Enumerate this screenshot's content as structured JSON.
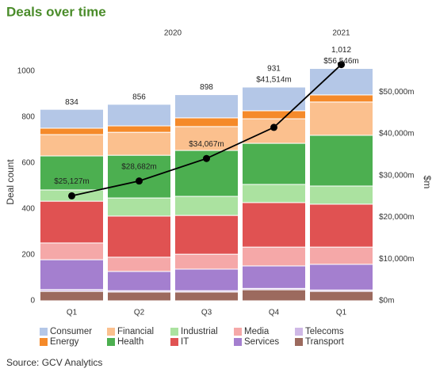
{
  "chart_data": {
    "type": "bar",
    "stacked": true,
    "title": "Deals over time",
    "source": "Source: GCV Analytics",
    "y_label": "Deal count",
    "y2_label": "$m",
    "categories": [
      "Q1",
      "Q2",
      "Q3",
      "Q4",
      "Q1"
    ],
    "category_groups": [
      {
        "label": "2020",
        "count": 4
      },
      {
        "label": "2021",
        "count": 1
      }
    ],
    "ylim": [
      0,
      1050
    ],
    "yticks": [
      0,
      200,
      400,
      600,
      800,
      1000
    ],
    "y2lim": [
      0,
      57700
    ],
    "y2ticks": [
      {
        "value": 0,
        "label": "$0m"
      },
      {
        "value": 10000,
        "label": "$10,000m"
      },
      {
        "value": 20000,
        "label": "$20,000m"
      },
      {
        "value": 30000,
        "label": "$30,000m"
      },
      {
        "value": 40000,
        "label": "$40,000m"
      },
      {
        "value": 50000,
        "label": "$50,000m"
      }
    ],
    "series": [
      {
        "name": "Consumer",
        "color": "#b4c7e7",
        "values": [
          82,
          94,
          101,
          103,
          115
        ]
      },
      {
        "name": "Energy",
        "color": "#f58a2a",
        "values": [
          28,
          28,
          38,
          35,
          31
        ]
      },
      {
        "name": "Financial",
        "color": "#fbc08e",
        "values": [
          93,
          100,
          104,
          107,
          145
        ]
      },
      {
        "name": "Health",
        "color": "#4caf50",
        "values": [
          148,
          186,
          200,
          179,
          221
        ]
      },
      {
        "name": "Industrial",
        "color": "#abe2a0",
        "values": [
          49,
          79,
          83,
          79,
          79
        ]
      },
      {
        "name": "IT",
        "color": "#e05252",
        "values": [
          182,
          179,
          169,
          194,
          187
        ]
      },
      {
        "name": "Media",
        "color": "#f5a8a8",
        "values": [
          73,
          62,
          65,
          82,
          75
        ]
      },
      {
        "name": "Services",
        "color": "#a47fcf",
        "values": [
          130,
          84,
          94,
          98,
          112
        ]
      },
      {
        "name": "Telecoms",
        "color": "#cfb8e6",
        "values": [
          8,
          6,
          6,
          6,
          6
        ]
      },
      {
        "name": "Transport",
        "color": "#9c6a5e",
        "values": [
          41,
          38,
          38,
          48,
          41
        ]
      }
    ],
    "totals": [
      834,
      856,
      898,
      931,
      1012
    ],
    "totals_labels": [
      "834",
      "856",
      "898",
      "931",
      "1,012"
    ],
    "line": {
      "color": "#000000",
      "axis": "y2",
      "values": [
        25127,
        28682,
        34067,
        41514,
        56546
      ],
      "value_labels": [
        "$25,127m",
        "$28,682m",
        "$34,067m",
        "$41,514m",
        "$56,546m"
      ]
    }
  }
}
